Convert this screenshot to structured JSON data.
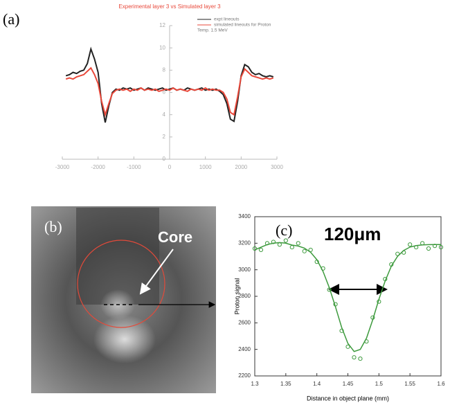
{
  "chart_data": [
    {
      "type": "line",
      "panel_label": "(a)",
      "title": "Experimental layer 3    vs    Simulated layer 3",
      "legend_note": "Temp. 1.5 MeV",
      "legend": "upper right",
      "grid": false,
      "x": [
        -2900,
        -2800,
        -2700,
        -2600,
        -2500,
        -2400,
        -2300,
        -2200,
        -2100,
        -2000,
        -1900,
        -1800,
        -1700,
        -1600,
        -1500,
        -1400,
        -1300,
        -1200,
        -1100,
        -1000,
        -900,
        -800,
        -700,
        -600,
        -500,
        -400,
        -300,
        -200,
        -100,
        0,
        100,
        200,
        300,
        400,
        500,
        600,
        700,
        800,
        900,
        1000,
        1100,
        1200,
        1300,
        1400,
        1500,
        1600,
        1700,
        1800,
        1900,
        2000,
        2100,
        2200,
        2300,
        2400,
        2500,
        2600,
        2700,
        2800,
        2900
      ],
      "series": [
        {
          "name": "expt lineouts",
          "color": "#222222",
          "values": [
            7.5,
            7.6,
            7.8,
            7.7,
            7.9,
            8.0,
            8.6,
            9.9,
            9.0,
            7.8,
            5.0,
            3.3,
            4.8,
            6.0,
            6.3,
            6.2,
            6.4,
            6.3,
            6.4,
            6.2,
            6.3,
            6.4,
            6.2,
            6.4,
            6.3,
            6.2,
            6.3,
            6.4,
            6.2,
            6.3,
            6.4,
            6.2,
            6.3,
            6.2,
            6.4,
            6.3,
            6.2,
            6.3,
            6.4,
            6.2,
            6.3,
            6.2,
            6.3,
            6.1,
            5.8,
            5.0,
            3.6,
            3.4,
            5.2,
            7.5,
            8.5,
            8.3,
            7.8,
            7.6,
            7.7,
            7.5,
            7.4,
            7.5,
            7.4
          ]
        },
        {
          "name": "simulated lineouts for Proton",
          "color": "#e8483a",
          "values": [
            7.2,
            7.3,
            7.2,
            7.4,
            7.5,
            7.6,
            7.9,
            8.2,
            7.6,
            6.8,
            5.2,
            4.0,
            5.0,
            5.9,
            6.2,
            6.3,
            6.2,
            6.3,
            6.1,
            6.3,
            6.2,
            6.4,
            6.2,
            6.3,
            6.2,
            6.3,
            6.1,
            6.2,
            6.3,
            6.2,
            6.4,
            6.2,
            6.3,
            6.2,
            6.1,
            6.3,
            6.2,
            6.3,
            6.2,
            6.4,
            6.2,
            6.3,
            6.2,
            6.2,
            6.0,
            5.4,
            4.2,
            4.0,
            5.6,
            7.4,
            8.1,
            7.8,
            7.5,
            7.4,
            7.3,
            7.2,
            7.3,
            7.2,
            7.3
          ]
        }
      ],
      "xlim": [
        -3000,
        3000
      ],
      "xticks": [
        -3000,
        -2000,
        -1000,
        0,
        1000,
        2000,
        3000
      ],
      "ylim": [
        0,
        12
      ],
      "yticks": [
        0,
        2,
        4,
        6,
        8,
        10,
        12
      ]
    },
    {
      "type": "scatter",
      "panel_label": "(c)",
      "annotation": "120μm",
      "frame": true,
      "grid": false,
      "xlabel": "Distance in object plane (mm)",
      "ylabel": "Proton signal",
      "x": [
        1.3,
        1.31,
        1.32,
        1.33,
        1.34,
        1.35,
        1.36,
        1.37,
        1.38,
        1.39,
        1.4,
        1.41,
        1.42,
        1.43,
        1.44,
        1.45,
        1.46,
        1.47,
        1.48,
        1.49,
        1.5,
        1.51,
        1.52,
        1.53,
        1.54,
        1.55,
        1.56,
        1.57,
        1.58,
        1.59,
        1.6
      ],
      "series": [
        {
          "type": "scatter",
          "color": "#3d9a3d",
          "values": [
            3160,
            3150,
            3200,
            3210,
            3190,
            3220,
            3170,
            3200,
            3140,
            3150,
            3060,
            3010,
            2850,
            2740,
            2540,
            2420,
            2340,
            2330,
            2460,
            2640,
            2760,
            2930,
            3040,
            3120,
            3130,
            3190,
            3170,
            3200,
            3160,
            3180,
            3170
          ]
        },
        {
          "type": "line",
          "color": "#3d9a3d",
          "values": [
            3150,
            3170,
            3190,
            3200,
            3205,
            3200,
            3186,
            3179,
            3163,
            3132,
            3076,
            2988,
            2866,
            2720,
            2566,
            2445,
            2384,
            2400,
            2485,
            2623,
            2777,
            2915,
            3028,
            3101,
            3146,
            3171,
            3182,
            3187,
            3189,
            3190,
            3190
          ]
        }
      ],
      "xlim": [
        1.3,
        1.6
      ],
      "xticks": [
        1.3,
        1.35,
        1.4,
        1.45,
        1.5,
        1.55,
        1.6
      ],
      "ylim": [
        2200,
        3400
      ],
      "yticks": [
        2200,
        2400,
        2600,
        2800,
        3000,
        3200,
        3400
      ]
    }
  ],
  "panel_b": {
    "label": "(b)",
    "annotation": "Core"
  }
}
